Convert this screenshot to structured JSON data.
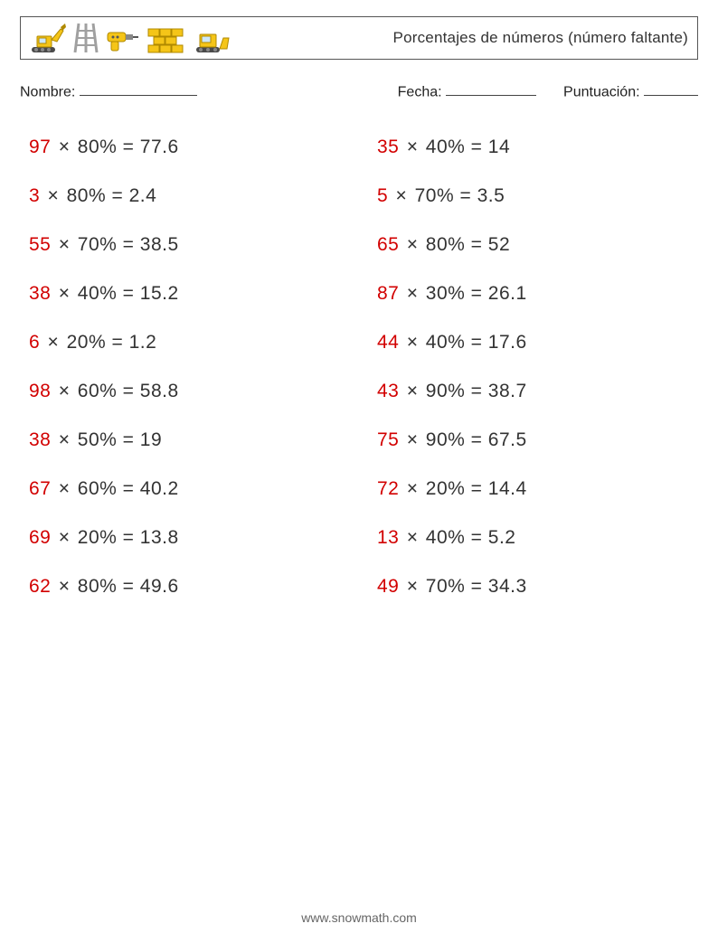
{
  "header": {
    "title": "Porcentajes de números (número faltante)"
  },
  "info": {
    "name_label": "Nombre:",
    "date_label": "Fecha:",
    "score_label": "Puntuación:"
  },
  "colors": {
    "answer": "#d20000",
    "text": "#333333",
    "border": "#555555",
    "background": "#ffffff",
    "footer": "#666666"
  },
  "problems": {
    "left": [
      {
        "answer": "97",
        "percent": "80",
        "result": "77.6"
      },
      {
        "answer": "3",
        "percent": "80",
        "result": "2.4"
      },
      {
        "answer": "55",
        "percent": "70",
        "result": "38.5"
      },
      {
        "answer": "38",
        "percent": "40",
        "result": "15.2"
      },
      {
        "answer": "6",
        "percent": "20",
        "result": "1.2"
      },
      {
        "answer": "98",
        "percent": "60",
        "result": "58.8"
      },
      {
        "answer": "38",
        "percent": "50",
        "result": "19"
      },
      {
        "answer": "67",
        "percent": "60",
        "result": "40.2"
      },
      {
        "answer": "69",
        "percent": "20",
        "result": "13.8"
      },
      {
        "answer": "62",
        "percent": "80",
        "result": "49.6"
      }
    ],
    "right": [
      {
        "answer": "35",
        "percent": "40",
        "result": "14"
      },
      {
        "answer": "5",
        "percent": "70",
        "result": "3.5"
      },
      {
        "answer": "65",
        "percent": "80",
        "result": "52"
      },
      {
        "answer": "87",
        "percent": "30",
        "result": "26.1"
      },
      {
        "answer": "44",
        "percent": "40",
        "result": "17.6"
      },
      {
        "answer": "43",
        "percent": "90",
        "result": "38.7"
      },
      {
        "answer": "75",
        "percent": "90",
        "result": "67.5"
      },
      {
        "answer": "72",
        "percent": "20",
        "result": "14.4"
      },
      {
        "answer": "13",
        "percent": "40",
        "result": "5.2"
      },
      {
        "answer": "49",
        "percent": "70",
        "result": "34.3"
      }
    ]
  },
  "footer": {
    "url": "www.snowmath.com"
  }
}
